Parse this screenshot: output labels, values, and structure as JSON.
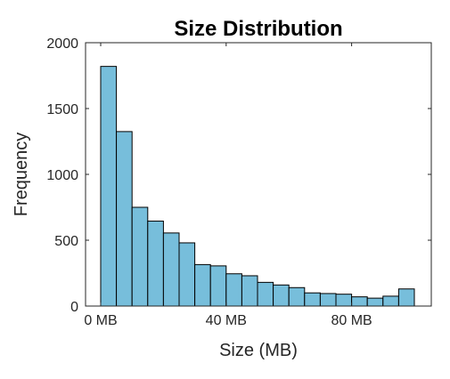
{
  "chart_data": {
    "type": "bar",
    "title": "Size Distribution",
    "xlabel": "Size (MB)",
    "ylabel": "Frequency",
    "xlim": [
      0,
      100
    ],
    "ylim": [
      0,
      2000
    ],
    "bin_width_mb": 5,
    "bin_start_mb": 0,
    "values": [
      1820,
      1325,
      750,
      645,
      555,
      480,
      315,
      305,
      245,
      230,
      180,
      160,
      140,
      100,
      95,
      90,
      70,
      60,
      75,
      130
    ],
    "x_ticks": [
      {
        "value": 0,
        "label": "0 MB"
      },
      {
        "value": 40,
        "label": "40 MB"
      },
      {
        "value": 80,
        "label": "80 MB"
      }
    ],
    "y_ticks": [
      {
        "value": 0,
        "label": "0"
      },
      {
        "value": 500,
        "label": "500"
      },
      {
        "value": 1000,
        "label": "1000"
      },
      {
        "value": 1500,
        "label": "1500"
      },
      {
        "value": 2000,
        "label": "2000"
      }
    ],
    "grid": false,
    "bar_color": "#77BEDB",
    "edge_color": "#000000"
  }
}
